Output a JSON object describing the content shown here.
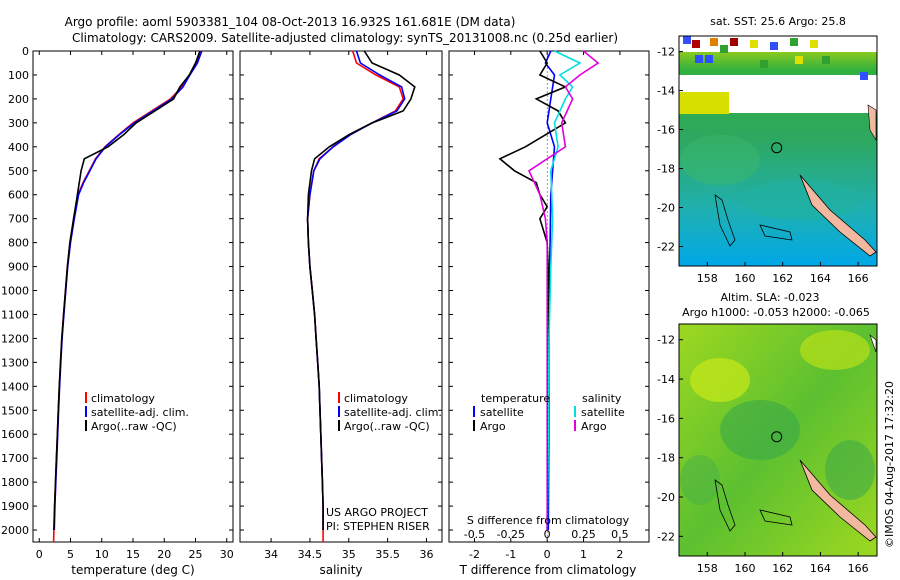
{
  "header": {
    "line1": "Argo profile: aoml 5903381_104 08-Oct-2013 16.932S 161.681E (DM data)",
    "line2": "Climatology: CARS2009. Satellite-adjusted climatology: synTS_20131008.nc (0.25d earlier)"
  },
  "colors": {
    "climatology": "#ff0000",
    "satellite": "#0000ff",
    "argo": "#000000",
    "sal_satellite": "#00e0e0",
    "sal_argo": "#e000e0"
  },
  "depth_axis": {
    "range": [
      0,
      2050
    ],
    "ticks": [
      "0",
      "100",
      "200",
      "300",
      "400",
      "500",
      "600",
      "700",
      "800",
      "900",
      "1000",
      "1100",
      "1200",
      "1300",
      "1400",
      "1500",
      "1600",
      "1700",
      "1800",
      "1900",
      "2000"
    ]
  },
  "chart_data": [
    {
      "id": "temperature",
      "type": "line",
      "xlabel": "temperature (deg C)",
      "xlim": [
        -1,
        31
      ],
      "ylim": [
        2050,
        0
      ],
      "xticks": [
        "0",
        "5",
        "10",
        "15",
        "20",
        "25",
        "30"
      ],
      "legend": {
        "placement": "lower-left",
        "entries": [
          "climatology",
          "satellite-adj. clim.",
          "Argo(..raw -QC)"
        ]
      },
      "series": [
        {
          "name": "climatology",
          "color": "#ff0000",
          "points": [
            [
              25.9,
              0
            ],
            [
              25.2,
              50
            ],
            [
              24.0,
              100
            ],
            [
              22.8,
              150
            ],
            [
              21.0,
              200
            ],
            [
              18.0,
              250
            ],
            [
              15.0,
              300
            ],
            [
              12.7,
              350
            ],
            [
              10.5,
              400
            ],
            [
              9.0,
              450
            ],
            [
              8.0,
              500
            ],
            [
              7.0,
              550
            ],
            [
              6.2,
              600
            ],
            [
              5.5,
              700
            ],
            [
              4.9,
              800
            ],
            [
              4.5,
              900
            ],
            [
              4.2,
              1000
            ],
            [
              3.9,
              1100
            ],
            [
              3.6,
              1200
            ],
            [
              3.4,
              1300
            ],
            [
              3.2,
              1400
            ],
            [
              3.05,
              1500
            ],
            [
              2.9,
              1600
            ],
            [
              2.75,
              1700
            ],
            [
              2.6,
              1800
            ],
            [
              2.45,
              1900
            ],
            [
              2.35,
              2000
            ],
            [
              2.3,
              2050
            ]
          ]
        },
        {
          "name": "satellite-adj. clim.",
          "color": "#0000ff",
          "points": [
            [
              26.0,
              0
            ],
            [
              25.3,
              50
            ],
            [
              24.1,
              100
            ],
            [
              23.0,
              150
            ],
            [
              21.2,
              200
            ],
            [
              18.2,
              250
            ],
            [
              15.2,
              300
            ],
            [
              12.8,
              350
            ],
            [
              10.6,
              400
            ],
            [
              9.1,
              450
            ],
            [
              8.1,
              500
            ],
            [
              7.1,
              550
            ],
            [
              6.3,
              600
            ],
            [
              5.6,
              700
            ],
            [
              5.0,
              800
            ],
            [
              4.55,
              900
            ],
            [
              4.25,
              1000
            ],
            [
              3.95,
              1100
            ],
            [
              3.65,
              1200
            ],
            [
              3.45,
              1300
            ],
            [
              3.25,
              1400
            ],
            [
              3.1,
              1500
            ],
            [
              2.95,
              1600
            ],
            [
              2.8,
              1700
            ],
            [
              2.65,
              1800
            ],
            [
              2.5,
              1900
            ],
            [
              2.4,
              2000
            ]
          ]
        },
        {
          "name": "Argo(..raw -QC)",
          "color": "#000000",
          "points": [
            [
              25.7,
              0
            ],
            [
              25.0,
              50
            ],
            [
              24.0,
              100
            ],
            [
              22.5,
              150
            ],
            [
              21.5,
              200
            ],
            [
              18.5,
              250
            ],
            [
              15.5,
              300
            ],
            [
              13.5,
              350
            ],
            [
              11.0,
              400
            ],
            [
              7.2,
              450
            ],
            [
              6.7,
              500
            ],
            [
              6.1,
              600
            ],
            [
              5.5,
              700
            ],
            [
              4.9,
              800
            ],
            [
              4.5,
              900
            ],
            [
              4.2,
              1000
            ],
            [
              3.9,
              1100
            ],
            [
              3.6,
              1200
            ],
            [
              3.4,
              1300
            ],
            [
              3.2,
              1400
            ],
            [
              3.05,
              1500
            ],
            [
              2.9,
              1600
            ],
            [
              2.75,
              1700
            ],
            [
              2.6,
              1800
            ],
            [
              2.45,
              1900
            ],
            [
              2.35,
              2000
            ]
          ]
        }
      ]
    },
    {
      "id": "salinity",
      "type": "line",
      "xlabel": "salinity",
      "xlim": [
        33.6,
        36.2
      ],
      "ylim": [
        2050,
        0
      ],
      "xticks": [
        "34",
        "34.5",
        "35",
        "35.5",
        "36"
      ],
      "legend": {
        "placement": "lower-left",
        "entries": [
          "climatology",
          "satellite-adj. clim.",
          "Argo(..raw -QC)"
        ]
      },
      "annotations": [
        "US ARGO PROJECT",
        "PI: STEPHEN RISER"
      ],
      "series": [
        {
          "name": "climatology",
          "color": "#ff0000",
          "points": [
            [
              35.05,
              0
            ],
            [
              35.1,
              50
            ],
            [
              35.35,
              100
            ],
            [
              35.65,
              150
            ],
            [
              35.7,
              200
            ],
            [
              35.6,
              250
            ],
            [
              35.3,
              300
            ],
            [
              35.0,
              350
            ],
            [
              34.8,
              400
            ],
            [
              34.62,
              450
            ],
            [
              34.55,
              500
            ],
            [
              34.5,
              600
            ],
            [
              34.47,
              700
            ],
            [
              34.48,
              800
            ],
            [
              34.5,
              900
            ],
            [
              34.53,
              1000
            ],
            [
              34.56,
              1100
            ],
            [
              34.58,
              1200
            ],
            [
              34.6,
              1300
            ],
            [
              34.62,
              1400
            ],
            [
              34.63,
              1500
            ],
            [
              34.64,
              1600
            ],
            [
              34.65,
              1700
            ],
            [
              34.66,
              1800
            ],
            [
              34.67,
              1900
            ],
            [
              34.67,
              2000
            ],
            [
              34.67,
              2050
            ]
          ]
        },
        {
          "name": "satellite-adj. clim.",
          "color": "#0000ff",
          "points": [
            [
              35.1,
              0
            ],
            [
              35.15,
              50
            ],
            [
              35.4,
              100
            ],
            [
              35.68,
              150
            ],
            [
              35.72,
              200
            ],
            [
              35.62,
              250
            ],
            [
              35.3,
              300
            ],
            [
              35.02,
              350
            ],
            [
              34.8,
              400
            ],
            [
              34.63,
              450
            ],
            [
              34.55,
              500
            ],
            [
              34.5,
              600
            ],
            [
              34.47,
              700
            ],
            [
              34.48,
              800
            ],
            [
              34.5,
              900
            ],
            [
              34.53,
              1000
            ],
            [
              34.56,
              1100
            ],
            [
              34.58,
              1200
            ],
            [
              34.6,
              1300
            ],
            [
              34.62,
              1400
            ],
            [
              34.63,
              1500
            ],
            [
              34.64,
              1600
            ],
            [
              34.65,
              1700
            ],
            [
              34.66,
              1800
            ],
            [
              34.67,
              1900
            ],
            [
              34.67,
              2000
            ]
          ]
        },
        {
          "name": "Argo(..raw -QC)",
          "color": "#000000",
          "points": [
            [
              35.2,
              0
            ],
            [
              35.3,
              50
            ],
            [
              35.65,
              100
            ],
            [
              35.85,
              150
            ],
            [
              35.8,
              200
            ],
            [
              35.7,
              250
            ],
            [
              35.3,
              300
            ],
            [
              35.0,
              350
            ],
            [
              34.75,
              400
            ],
            [
              34.56,
              450
            ],
            [
              34.52,
              500
            ],
            [
              34.48,
              600
            ],
            [
              34.47,
              700
            ],
            [
              34.48,
              800
            ],
            [
              34.5,
              900
            ],
            [
              34.53,
              1000
            ],
            [
              34.56,
              1100
            ],
            [
              34.58,
              1200
            ],
            [
              34.6,
              1300
            ],
            [
              34.62,
              1400
            ],
            [
              34.63,
              1500
            ],
            [
              34.64,
              1600
            ],
            [
              34.65,
              1700
            ],
            [
              34.66,
              1800
            ],
            [
              34.67,
              1900
            ],
            [
              34.67,
              2000
            ]
          ]
        }
      ]
    },
    {
      "id": "difference",
      "type": "line",
      "xlabel": "T difference from climatology",
      "xlabel_top": "S difference from climatology",
      "xlim": [
        -2.7,
        2.8
      ],
      "ylim": [
        2050,
        0
      ],
      "xticks": [
        "-2",
        "-1",
        "0",
        "1",
        "2"
      ],
      "xticks_top": [
        "-0.5",
        "-0.25",
        "0",
        "0.25",
        "0.5"
      ],
      "legend": {
        "placement": "lower",
        "headers": [
          "temperature",
          "salinity"
        ],
        "entries": [
          "satellite",
          "Argo",
          "satellite",
          "Argo"
        ]
      },
      "series": [
        {
          "name": "temperature satellite",
          "color": "#0000ff",
          "points": [
            [
              0.1,
              0
            ],
            [
              -0.05,
              50
            ],
            [
              0.2,
              100
            ],
            [
              0.1,
              200
            ],
            [
              0.0,
              300
            ],
            [
              0.2,
              400
            ],
            [
              0.15,
              500
            ],
            [
              0.1,
              600
            ],
            [
              0.08,
              800
            ],
            [
              0.05,
              1000
            ],
            [
              0.05,
              1500
            ],
            [
              0.03,
              2000
            ]
          ]
        },
        {
          "name": "temperature Argo",
          "color": "#000000",
          "points": [
            [
              -0.2,
              0
            ],
            [
              0.0,
              50
            ],
            [
              -0.2,
              100
            ],
            [
              0.5,
              150
            ],
            [
              -0.3,
              200
            ],
            [
              0.3,
              250
            ],
            [
              0.5,
              300
            ],
            [
              -0.6,
              400
            ],
            [
              -1.3,
              450
            ],
            [
              -0.9,
              500
            ],
            [
              -0.3,
              550
            ],
            [
              -0.2,
              600
            ],
            [
              0.0,
              650
            ],
            [
              -0.2,
              700
            ],
            [
              0.0,
              800
            ],
            [
              0.05,
              1000
            ],
            [
              0.02,
              1500
            ],
            [
              0.0,
              2000
            ]
          ]
        },
        {
          "name": "salinity satellite",
          "color": "#00e0e0",
          "points": [
            [
              0.2,
              0
            ],
            [
              0.9,
              50
            ],
            [
              0.35,
              100
            ],
            [
              0.7,
              150
            ],
            [
              0.5,
              200
            ],
            [
              0.2,
              300
            ],
            [
              0.3,
              400
            ],
            [
              0.1,
              500
            ],
            [
              0.15,
              700
            ],
            [
              0.1,
              900
            ],
            [
              0.05,
              1200
            ],
            [
              0.03,
              1600
            ],
            [
              0.0,
              2000
            ]
          ]
        },
        {
          "name": "salinity Argo",
          "color": "#e000e0",
          "points": [
            [
              1.0,
              0
            ],
            [
              1.4,
              50
            ],
            [
              0.9,
              100
            ],
            [
              0.5,
              150
            ],
            [
              0.7,
              200
            ],
            [
              0.4,
              300
            ],
            [
              0.5,
              400
            ],
            [
              -0.5,
              500
            ],
            [
              -0.2,
              600
            ],
            [
              -0.05,
              700
            ],
            [
              0.0,
              800
            ],
            [
              0.0,
              1000
            ],
            [
              0.0,
              1500
            ],
            [
              0.0,
              2000
            ]
          ]
        }
      ]
    },
    {
      "id": "sst_map",
      "type": "heatmap",
      "title": "sat. SST: 25.6 Argo: 25.8",
      "xlim": [
        156.5,
        167
      ],
      "ylim": [
        -23,
        -11.2
      ],
      "xticks": [
        "158",
        "160",
        "162",
        "164",
        "166"
      ],
      "yticks": [
        "-12",
        "-14",
        "-16",
        "-18",
        "-20",
        "-22"
      ],
      "marker": {
        "lon": 161.681,
        "lat": -16.932
      }
    },
    {
      "id": "sla_map",
      "type": "heatmap",
      "title": "Altim. SLA: -0.023",
      "subtitle": "Argo h1000: -0.053 h2000: -0.065",
      "xlim": [
        156.5,
        167
      ],
      "ylim": [
        -23,
        -11.2
      ],
      "xticks": [
        "158",
        "160",
        "162",
        "164",
        "166"
      ],
      "yticks": [
        "-12",
        "-14",
        "-16",
        "-18",
        "-20",
        "-22"
      ],
      "marker": {
        "lon": 161.681,
        "lat": -16.932
      }
    }
  ],
  "footer": {
    "credit": "©IMOS 04-Aug-2017 17:32:20"
  }
}
